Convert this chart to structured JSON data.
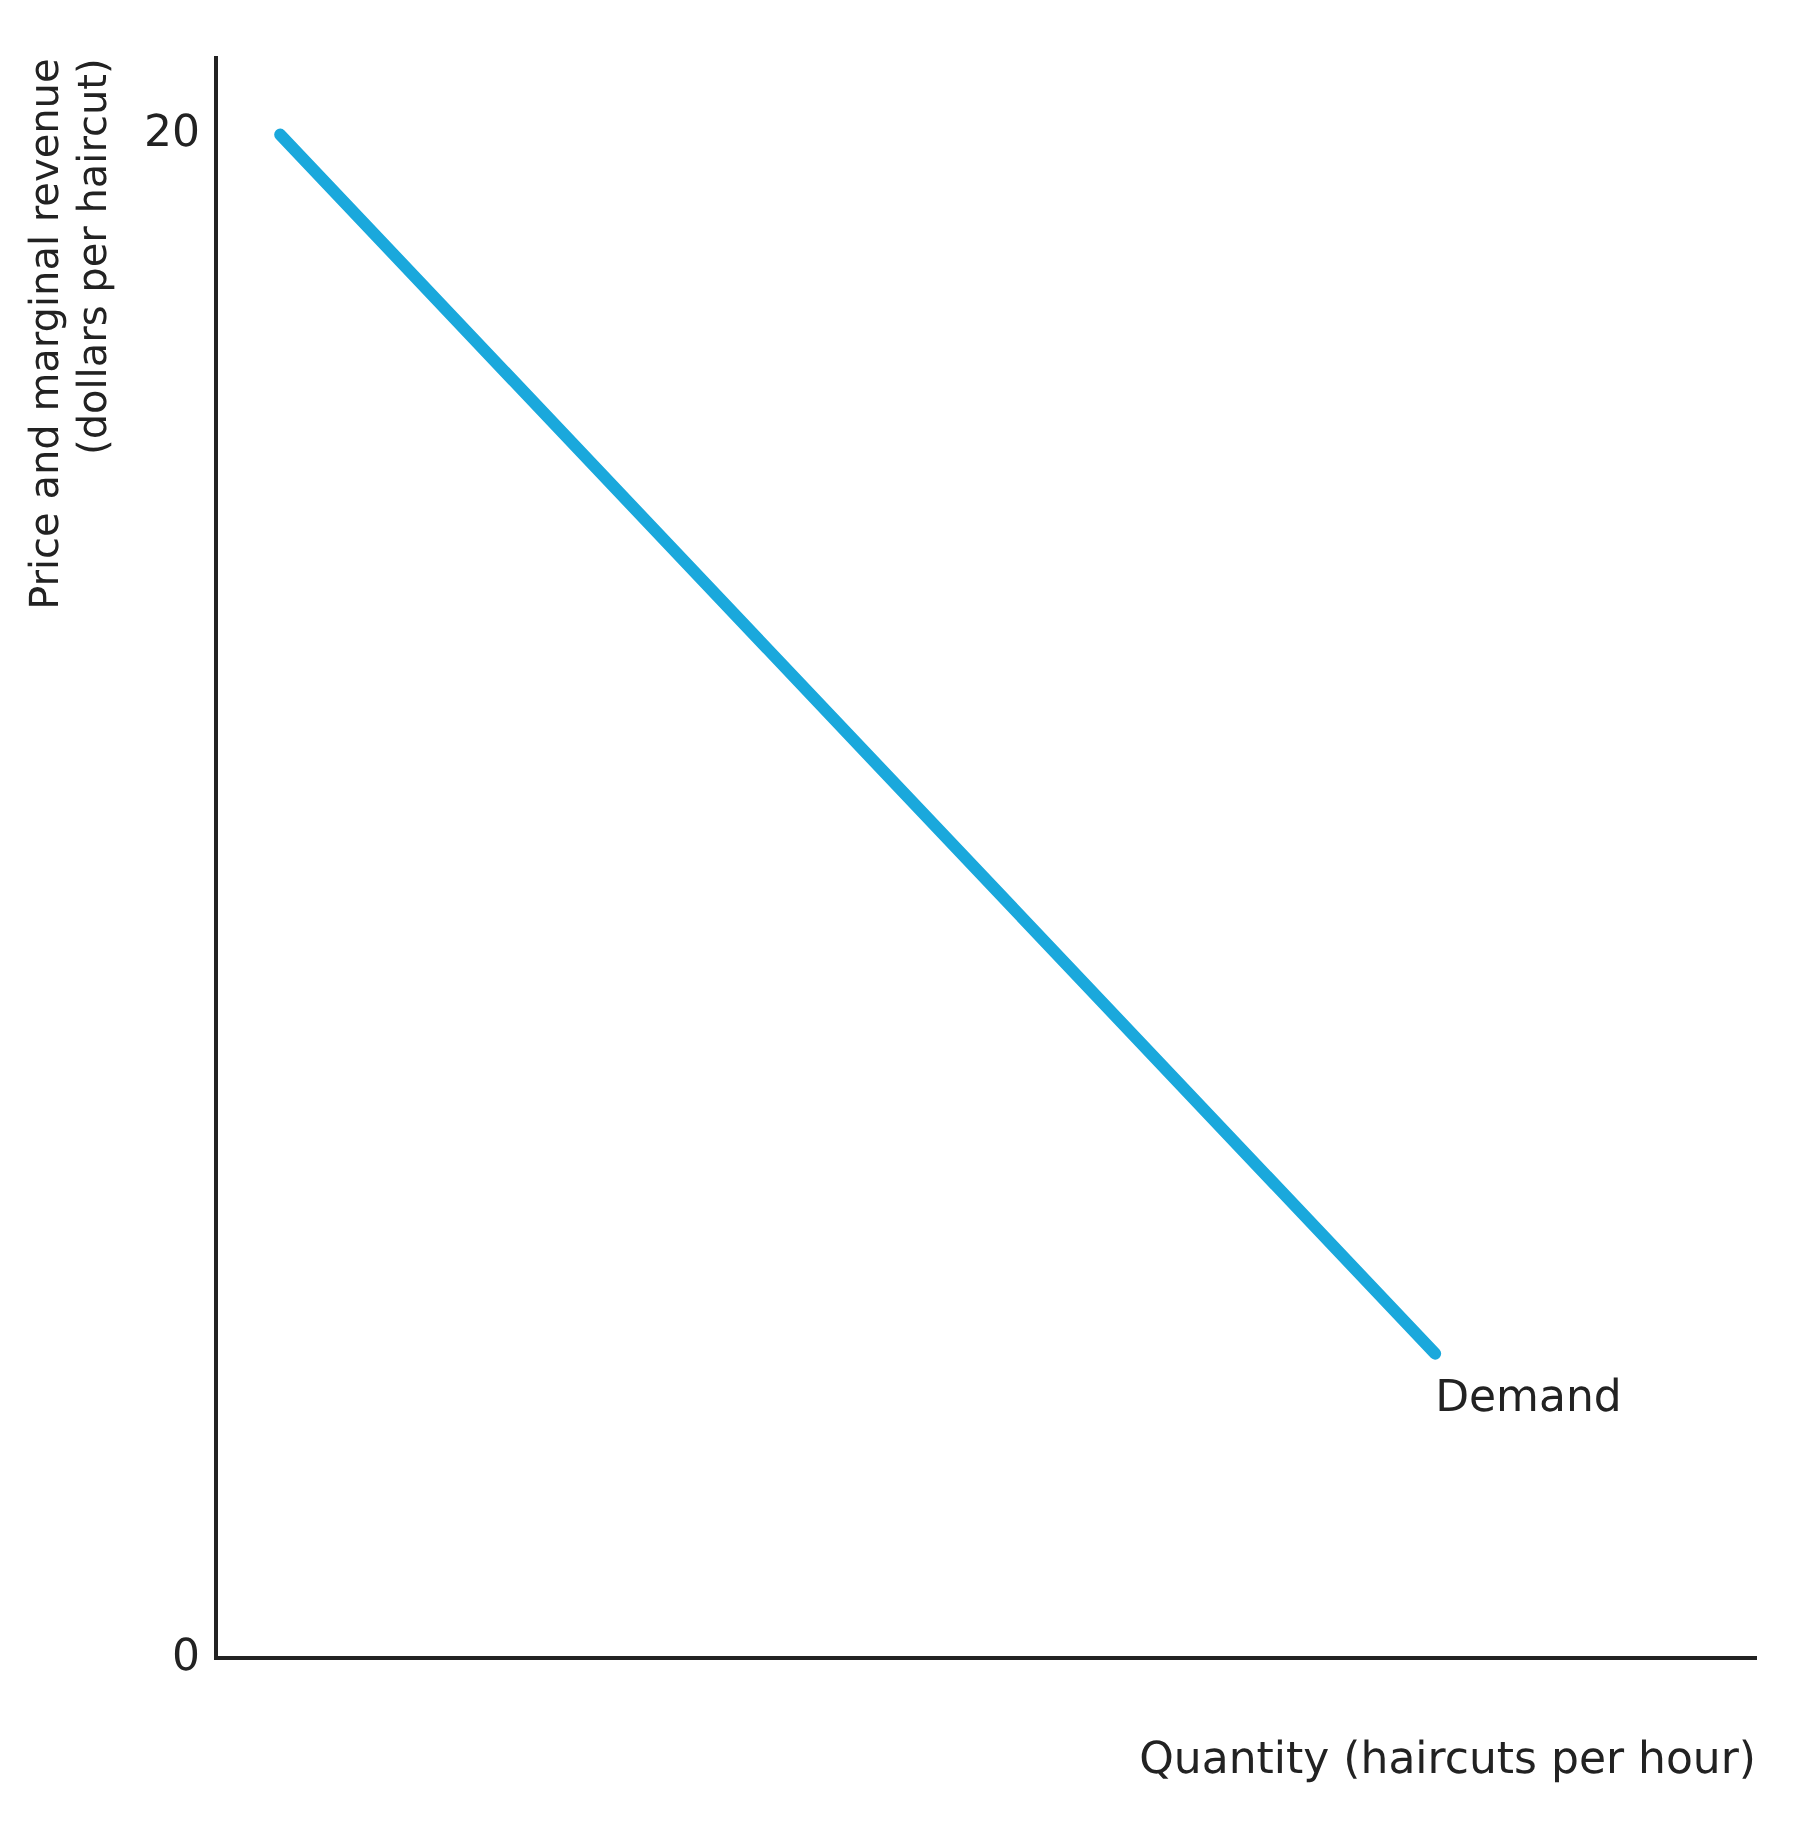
{
  "chart_data": {
    "type": "line",
    "xlabel": "Quantity (haircuts per hour)",
    "ylabel": "Price and marginal revenue\n(dollars per haircut)",
    "categories": [
      null,
      null,
      null,
      null,
      null,
      null,
      null,
      null,
      null,
      null,
      null,
      null
    ],
    "series": [
      {
        "name": "Demand",
        "color": "#1aa8dc",
        "values": [
          20,
          null,
          null,
          null,
          null,
          null,
          null,
          null,
          null,
          4,
          null,
          null
        ]
      }
    ],
    "ylim": [
      0,
      21
    ],
    "yticks": [
      0,
      20
    ],
    "grid": false,
    "legend": false,
    "marker": "none",
    "line_style": "solid"
  }
}
